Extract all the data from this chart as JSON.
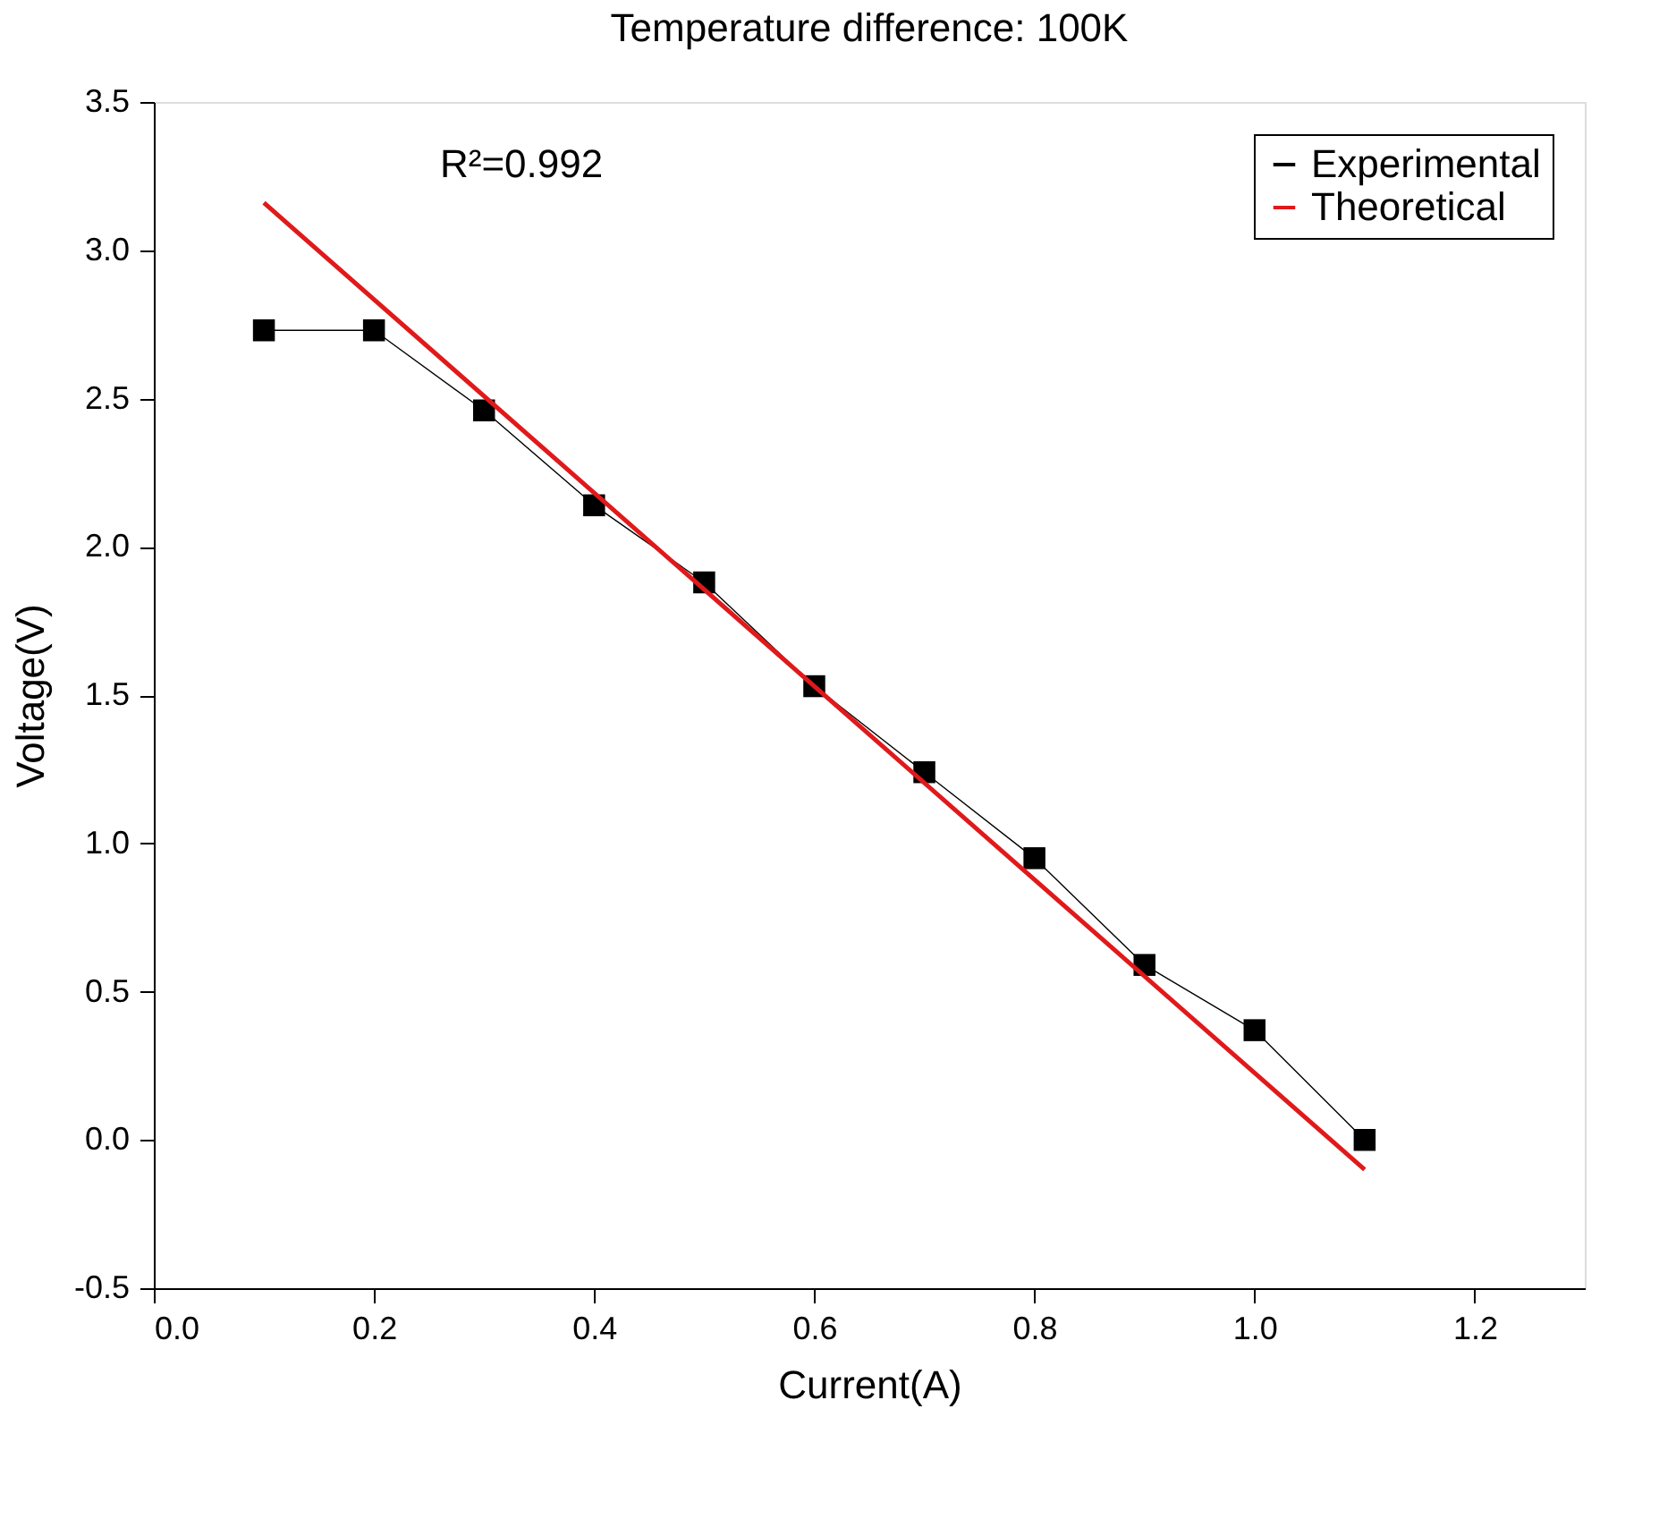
{
  "chart_data": {
    "type": "line",
    "title": "Temperature difference: 100K",
    "xlabel": "Current(A)",
    "ylabel": "Voltage(V)",
    "annotations": [
      "R²=0.992"
    ],
    "xlim": [
      0,
      1.3
    ],
    "xticks": [
      {
        "value": 0,
        "label": "0.0"
      },
      0.2,
      0.4,
      0.6,
      0.8,
      {
        "value": 1,
        "label": "1.0"
      },
      1.2
    ],
    "ylim": [
      -0.5,
      3.5
    ],
    "yticks": [
      {
        "value": -0.5,
        "label": "-0.5"
      },
      {
        "value": 0,
        "label": "0.0"
      },
      0.5,
      {
        "value": 1,
        "label": "1.0"
      },
      1.5,
      {
        "value": 2,
        "label": "2.0"
      },
      2.5,
      {
        "value": 3,
        "label": "3.0"
      },
      3.5
    ],
    "grid": false,
    "legend": "top right",
    "series": [
      {
        "name": "Experimental",
        "color": "#000000",
        "marker": "square",
        "x": [
          0.1,
          0.2,
          0.3,
          0.4,
          0.5,
          0.6,
          0.7,
          0.8,
          0.9,
          1.0,
          1.1
        ],
        "values": [
          2.73,
          2.73,
          2.46,
          2.14,
          1.88,
          1.53,
          1.24,
          0.95,
          0.59,
          0.37,
          0.0
        ]
      },
      {
        "name": "Theoretical",
        "color": "#e0191b",
        "marker": "none",
        "x": [
          0.1,
          1.1
        ],
        "values": [
          3.16,
          -0.1
        ]
      }
    ]
  }
}
